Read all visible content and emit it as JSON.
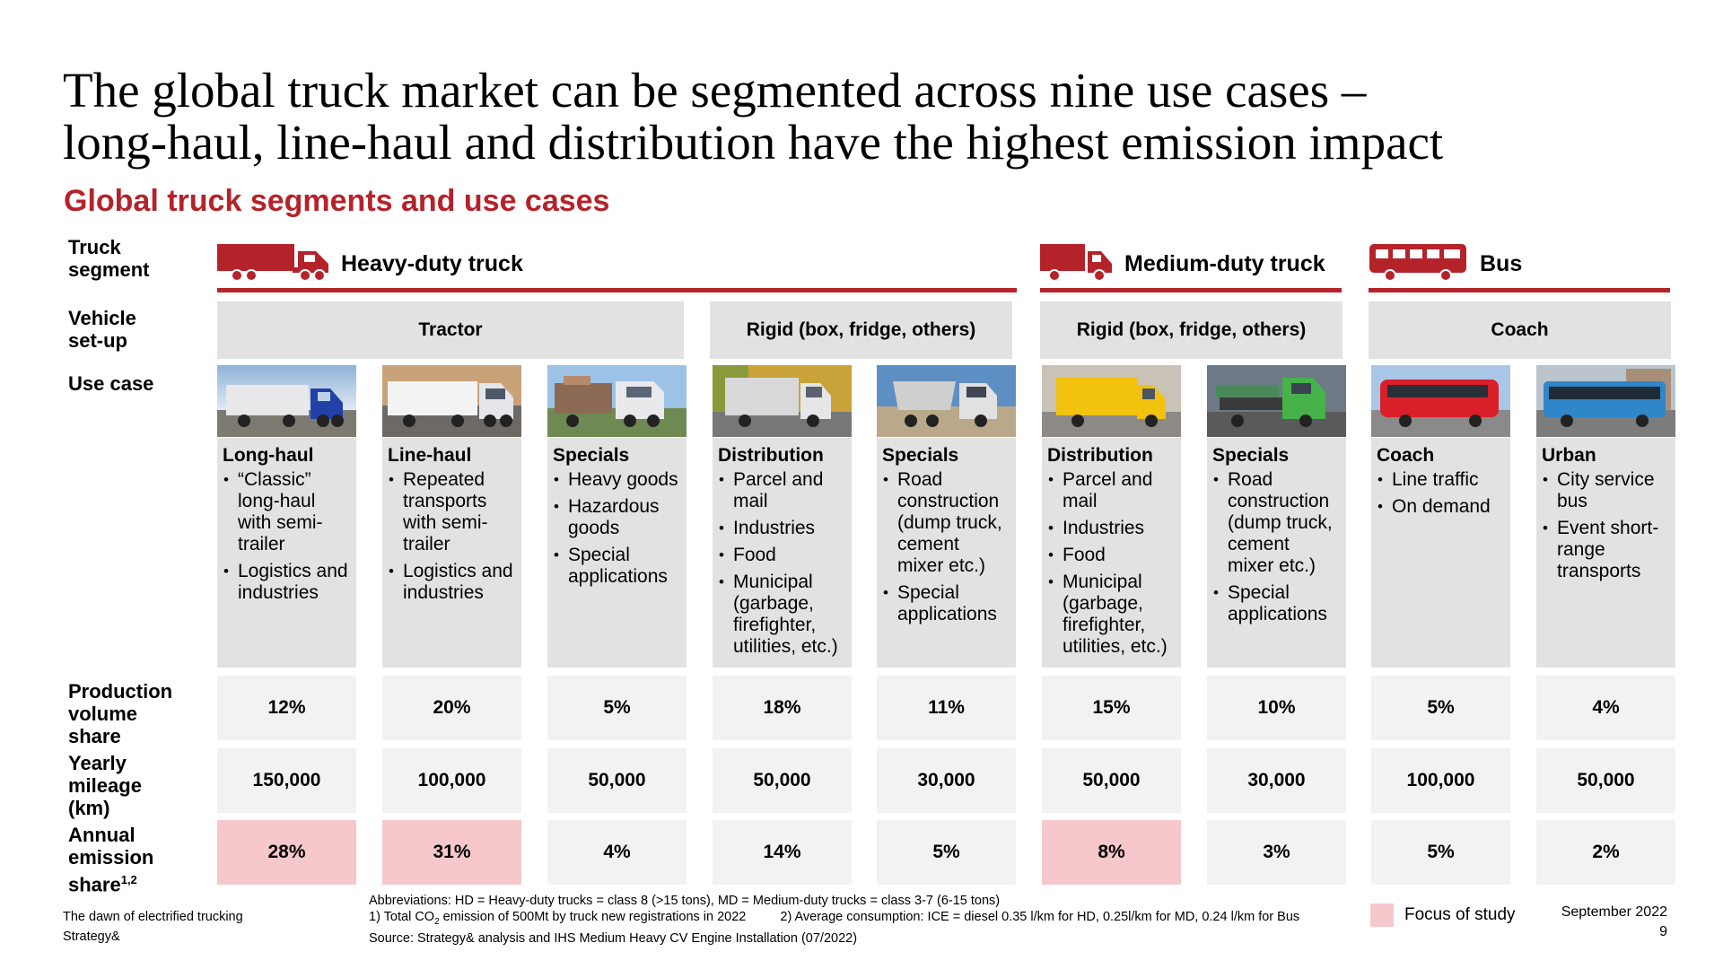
{
  "title_line1": "The global truck market can be segmented across nine use cases –",
  "title_line2": "long-haul, line-haul and distribution have the highest emission impact",
  "subtitle": "Global truck segments and use cases",
  "row_labels": {
    "truck_segment": "Truck segment",
    "vehicle_setup": "Vehicle set-up",
    "use_case": "Use case",
    "production": "Production volume share",
    "mileage": "Yearly mileage (km)",
    "emission": "Annual emission share",
    "emission_sup": "1,2"
  },
  "segments": [
    {
      "label": "Heavy-duty truck",
      "icon": "heavy-truck-icon"
    },
    {
      "label": "Medium-duty truck",
      "icon": "medium-truck-icon"
    },
    {
      "label": "Bus",
      "icon": "bus-icon"
    }
  ],
  "setups": [
    "Tractor",
    "Rigid (box, fridge, others)",
    "Rigid (box, fridge, others)",
    "Coach"
  ],
  "use_cases": [
    {
      "name": "Long-haul",
      "bullets": [
        "“Classic” long-haul with semi-trailer",
        "Logistics and industries"
      ],
      "production": "12%",
      "mileage": "150,000",
      "emission": "28%",
      "focus": true
    },
    {
      "name": "Line-haul",
      "bullets": [
        "Repeated transports with semi-trailer",
        "Logistics and industries"
      ],
      "production": "20%",
      "mileage": "100,000",
      "emission": "31%",
      "focus": true
    },
    {
      "name": "Specials",
      "bullets": [
        "Heavy goods",
        "Hazardous goods",
        "Special applications"
      ],
      "production": "5%",
      "mileage": "50,000",
      "emission": "4%",
      "focus": false
    },
    {
      "name": "Distribution",
      "bullets": [
        "Parcel and mail",
        "Industries",
        "Food",
        "Municipal (garbage, firefighter, utilities, etc.)"
      ],
      "production": "18%",
      "mileage": "50,000",
      "emission": "14%",
      "focus": false
    },
    {
      "name": "Specials",
      "bullets": [
        "Road construction (dump truck, cement mixer etc.)",
        "Special applications"
      ],
      "production": "11%",
      "mileage": "30,000",
      "emission": "5%",
      "focus": false
    },
    {
      "name": "Distribution",
      "bullets": [
        "Parcel and mail",
        "Industries",
        "Food",
        "Municipal (garbage, firefighter, utilities, etc.)"
      ],
      "production": "15%",
      "mileage": "50,000",
      "emission": "8%",
      "focus": true
    },
    {
      "name": "Specials",
      "bullets": [
        "Road construction (dump truck, cement mixer etc.)",
        "Special applications"
      ],
      "production": "10%",
      "mileage": "30,000",
      "emission": "3%",
      "focus": false
    },
    {
      "name": "Coach",
      "bullets": [
        "Line traffic",
        "On demand"
      ],
      "production": "5%",
      "mileage": "100,000",
      "emission": "5%",
      "focus": false
    },
    {
      "name": "Urban",
      "bullets": [
        "City service bus",
        "Event short-range transports"
      ],
      "production": "4%",
      "mileage": "50,000",
      "emission": "2%",
      "focus": false
    }
  ],
  "notes": {
    "abbreviations": "Abbreviations: HD = Heavy-duty trucks = class 8 (>15 tons), MD = Medium-duty trucks = class 3-7 (6-15 tons)",
    "note1_pre": "1)  Total CO",
    "note1_sub": "2",
    "note1_post": " emission of 500Mt by truck new registrations in 2022",
    "note2": "2) Average consumption: ICE = diesel 0.35 l/km for HD, 0.25l/km for MD, 0.24 l/km for Bus",
    "source": "Source: Strategy& analysis and IHS Medium Heavy CV Engine Installation (07/2022)"
  },
  "footer": {
    "doc_title": "The dawn of electrified trucking",
    "brand": "Strategy&",
    "legend": "Focus of study",
    "date": "September 2022",
    "page": "9"
  },
  "colors": {
    "accent": "#b5232a",
    "focus": "#f6c8cb",
    "gray": "#e2e2e2",
    "light_gray": "#f2f2f2"
  }
}
